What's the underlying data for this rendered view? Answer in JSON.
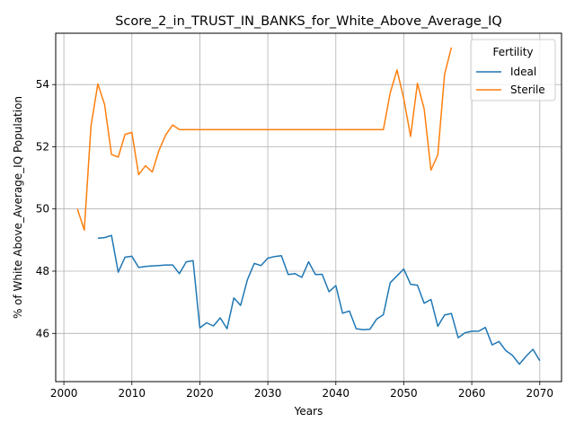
{
  "chart_data": {
    "type": "line",
    "title": "Score_2_in_TRUST_IN_BANKS_for_White_Above_Average_IQ",
    "xlabel": "Years",
    "ylabel": "% of White Above_Average_IQ Population",
    "xlim": [
      1998.8,
      2073.2
    ],
    "ylim": [
      44.45,
      55.65
    ],
    "xticks": [
      2000,
      2010,
      2020,
      2030,
      2040,
      2050,
      2060,
      2070
    ],
    "yticks": [
      46,
      48,
      50,
      52,
      54
    ],
    "grid": true,
    "legend": {
      "title": "Fertility",
      "placement": "upper right"
    },
    "series": [
      {
        "name": "Ideal",
        "color": "#1f77b4",
        "x": [
          2005,
          2006,
          2007,
          2008,
          2009,
          2010,
          2011,
          2012,
          2013,
          2014,
          2015,
          2016,
          2017,
          2018,
          2019,
          2020,
          2021,
          2022,
          2023,
          2024,
          2025,
          2026,
          2027,
          2028,
          2029,
          2030,
          2031,
          2032,
          2033,
          2034,
          2035,
          2036,
          2037,
          2038,
          2039,
          2040,
          2041,
          2042,
          2043,
          2044,
          2045,
          2046,
          2047,
          2048,
          2049,
          2050,
          2051,
          2052,
          2053,
          2054,
          2055,
          2056,
          2057,
          2058,
          2059,
          2060,
          2061,
          2062,
          2063,
          2064,
          2065,
          2066,
          2067,
          2068,
          2069,
          2070
        ],
        "y": [
          49.06,
          49.08,
          49.15,
          47.97,
          48.45,
          48.48,
          48.12,
          48.15,
          48.17,
          48.18,
          48.2,
          48.2,
          47.92,
          48.3,
          48.34,
          46.18,
          46.34,
          46.24,
          46.5,
          46.15,
          47.14,
          46.9,
          47.73,
          48.25,
          48.18,
          48.42,
          48.47,
          48.5,
          47.89,
          47.92,
          47.8,
          48.3,
          47.89,
          47.9,
          47.34,
          47.54,
          46.65,
          46.72,
          46.15,
          46.12,
          46.13,
          46.46,
          46.6,
          47.63,
          47.85,
          48.07,
          47.58,
          47.55,
          46.97,
          47.09,
          46.23,
          46.59,
          46.64,
          45.86,
          46.02,
          46.07,
          46.07,
          46.19,
          45.63,
          45.74,
          45.45,
          45.29,
          45.01,
          45.27,
          45.49,
          45.12
        ]
      },
      {
        "name": "Sterile",
        "color": "#ff7f0e",
        "x": [
          2002,
          2003,
          2004,
          2005,
          2006,
          2007,
          2008,
          2009,
          2010,
          2011,
          2012,
          2013,
          2014,
          2015,
          2016,
          2017,
          2018,
          2019,
          2020,
          2021,
          2022,
          2023,
          2024,
          2025,
          2026,
          2027,
          2028,
          2029,
          2030,
          2031,
          2032,
          2033,
          2034,
          2035,
          2036,
          2037,
          2038,
          2039,
          2040,
          2041,
          2042,
          2043,
          2044,
          2045,
          2046,
          2047,
          2048,
          2049,
          2050,
          2051,
          2052,
          2053,
          2054,
          2055,
          2056,
          2057
        ],
        "y": [
          50.0,
          49.32,
          52.67,
          54.02,
          53.35,
          51.75,
          51.67,
          52.4,
          52.46,
          51.1,
          51.39,
          51.19,
          51.89,
          52.39,
          52.7,
          52.55,
          52.55,
          52.55,
          52.55,
          52.55,
          52.55,
          52.55,
          52.55,
          52.55,
          52.55,
          52.55,
          52.55,
          52.55,
          52.55,
          52.55,
          52.55,
          52.55,
          52.55,
          52.55,
          52.55,
          52.55,
          52.55,
          52.55,
          52.55,
          52.55,
          52.55,
          52.55,
          52.55,
          52.55,
          52.55,
          52.55,
          53.73,
          54.47,
          53.55,
          52.33,
          54.04,
          53.22,
          51.25,
          51.74,
          54.32,
          55.19
        ]
      }
    ]
  }
}
